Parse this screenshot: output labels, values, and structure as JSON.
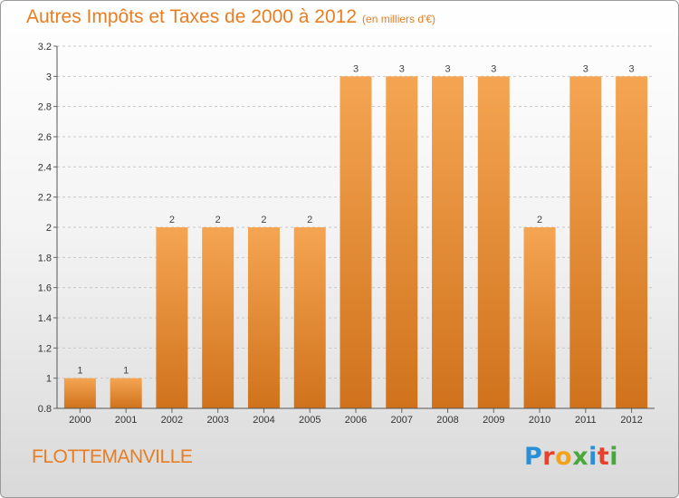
{
  "header": {
    "title": "Autres Impôts et Taxes de 2000 à 2012",
    "unit": "(en milliers d'€)"
  },
  "footer": {
    "commune": "FLOTTEMANVILLE",
    "logo_letters": [
      {
        "char": "P",
        "color": "#2a8fd6"
      },
      {
        "char": "r",
        "color": "#e8402a"
      },
      {
        "char": "o",
        "color": "#f2a31b"
      },
      {
        "char": "x",
        "color": "#48a83c"
      },
      {
        "char": "i",
        "color": "#2a8fd6"
      },
      {
        "char": "t",
        "color": "#e8402a"
      },
      {
        "char": "i",
        "color": "#48a83c"
      }
    ]
  },
  "colors": {
    "bar_light": "#f5a552",
    "bar_dark": "#d0721c",
    "accent": "#e87d22",
    "grid": "#c8c8c8"
  },
  "chart_data": {
    "type": "bar",
    "title": "Autres Impôts et Taxes de 2000 à 2012",
    "subtitle": "(en milliers d'€)",
    "xlabel": "",
    "ylabel": "",
    "categories": [
      "2000",
      "2001",
      "2002",
      "2003",
      "2004",
      "2005",
      "2006",
      "2007",
      "2008",
      "2009",
      "2010",
      "2011",
      "2012"
    ],
    "values": [
      1,
      1,
      2,
      2,
      2,
      2,
      3,
      3,
      3,
      3,
      2,
      3,
      3
    ],
    "data_labels": [
      "1",
      "1",
      "2",
      "2",
      "2",
      "2",
      "3",
      "3",
      "3",
      "3",
      "2",
      "3",
      "3"
    ],
    "ylim": [
      0.8,
      3.2
    ],
    "yticks": [
      "0.8",
      "1",
      "1.2",
      "1.4",
      "1.6",
      "1.8",
      "2",
      "2.2",
      "2.4",
      "2.6",
      "2.8",
      "3",
      "3.2"
    ],
    "ytick_values": [
      0.8,
      1,
      1.2,
      1.4,
      1.6,
      1.8,
      2,
      2.2,
      2.4,
      2.6,
      2.8,
      3,
      3.2
    ],
    "grid": true,
    "legend": "none"
  }
}
